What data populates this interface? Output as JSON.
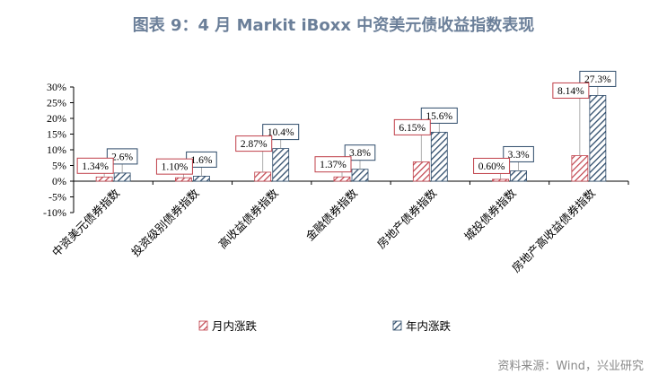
{
  "title": "图表 9：4 月 Markit iBoxx 中资美元债收益指数表现",
  "source": "资料来源：Wind，兴业研究",
  "colors": {
    "series1": "#c0404a",
    "series2": "#2e4b6a",
    "label_border": "#c0404a",
    "label_border2": "#2e4b6a",
    "title": "#6b7f99"
  },
  "chart_data": {
    "type": "bar",
    "categories": [
      "中资美元债券指数",
      "投资级别债券指数",
      "高收益债券指数",
      "金融债券指数",
      "房地产债券指数",
      "城投债券指数",
      "房地产高收益债券指数"
    ],
    "series": [
      {
        "name": "月内涨跌",
        "values": [
          1.34,
          1.1,
          2.87,
          1.37,
          6.15,
          0.6,
          8.14
        ],
        "labels": [
          "1.34%",
          "1.10%",
          "2.87%",
          "1.37%",
          "6.15%",
          "0.60%",
          "8.14%"
        ]
      },
      {
        "name": "年内涨跌",
        "values": [
          2.6,
          1.6,
          10.4,
          3.8,
          15.6,
          3.3,
          27.3
        ],
        "labels": [
          "2.6%",
          "1.6%",
          "10.4%",
          "3.8%",
          "15.6%",
          "3.3%",
          "27.3%"
        ]
      }
    ],
    "yticks": [
      "30%",
      "25%",
      "20%",
      "15%",
      "10%",
      "5%",
      "0%",
      "-5%",
      "-10%"
    ],
    "ytick_values": [
      30,
      25,
      20,
      15,
      10,
      5,
      0,
      -5,
      -10
    ],
    "ylim": [
      -10,
      30
    ],
    "legend_position": "bottom",
    "grid": false
  }
}
